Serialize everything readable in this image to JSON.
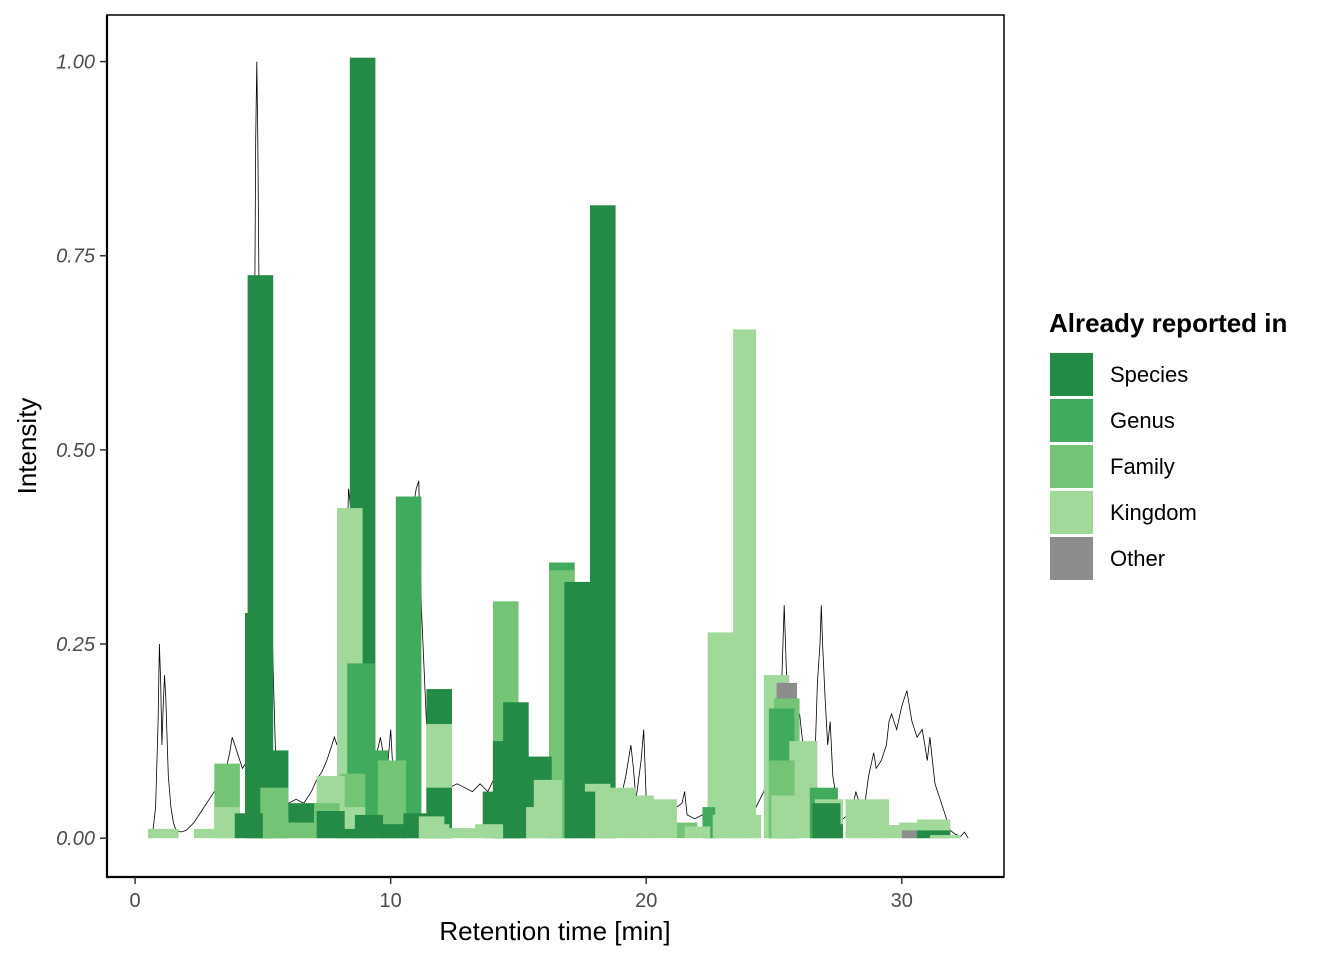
{
  "chart_data": {
    "type": "bar",
    "xlabel": "Retention time [min]",
    "ylabel": "Intensity",
    "xlim": [
      -1.1,
      34.0
    ],
    "ylim": [
      -0.05,
      1.06
    ],
    "x_ticks": [
      0,
      10,
      20,
      30
    ],
    "x_tick_labels": [
      "0",
      "10",
      "20",
      "30"
    ],
    "y_ticks": [
      0,
      0.25,
      0.5,
      0.75,
      1.0
    ],
    "y_tick_labels": [
      "0.00",
      "0.25",
      "0.50",
      "0.75",
      "1.00"
    ],
    "grid": false,
    "legend": {
      "title": "Already reported in",
      "placement": "right",
      "entries": [
        {
          "label": "Species",
          "color": "#238b45"
        },
        {
          "label": "Genus",
          "color": "#41ab5d"
        },
        {
          "label": "Family",
          "color": "#74c476"
        },
        {
          "label": "Kingdom",
          "color": "#a1d99b"
        },
        {
          "label": "Other",
          "color": "#8c8c8c"
        }
      ]
    },
    "trace": {
      "color": "#000000",
      "points": [
        [
          0.6,
          0.0
        ],
        [
          0.7,
          0.01
        ],
        [
          0.8,
          0.04
        ],
        [
          0.9,
          0.15
        ],
        [
          0.95,
          0.25
        ],
        [
          1.0,
          0.2
        ],
        [
          1.05,
          0.12
        ],
        [
          1.1,
          0.17
        ],
        [
          1.15,
          0.21
        ],
        [
          1.2,
          0.18
        ],
        [
          1.3,
          0.08
        ],
        [
          1.4,
          0.04
        ],
        [
          1.5,
          0.02
        ],
        [
          1.6,
          0.01
        ],
        [
          1.8,
          0.008
        ],
        [
          2.0,
          0.01
        ],
        [
          2.3,
          0.02
        ],
        [
          2.6,
          0.035
        ],
        [
          2.9,
          0.05
        ],
        [
          3.2,
          0.065
        ],
        [
          3.5,
          0.08
        ],
        [
          3.7,
          0.11
        ],
        [
          3.8,
          0.13
        ],
        [
          3.9,
          0.12
        ],
        [
          4.0,
          0.11
        ],
        [
          4.2,
          0.09
        ],
        [
          4.4,
          0.1
        ],
        [
          4.55,
          0.2
        ],
        [
          4.65,
          0.5
        ],
        [
          4.72,
          0.9
        ],
        [
          4.76,
          1.0
        ],
        [
          4.8,
          0.9
        ],
        [
          4.9,
          0.5
        ],
        [
          5.0,
          0.3
        ],
        [
          5.1,
          0.2
        ],
        [
          5.2,
          0.12
        ],
        [
          5.3,
          0.2
        ],
        [
          5.35,
          0.29
        ],
        [
          5.4,
          0.22
        ],
        [
          5.5,
          0.1
        ],
        [
          5.7,
          0.06
        ],
        [
          6.0,
          0.045
        ],
        [
          6.3,
          0.05
        ],
        [
          6.6,
          0.045
        ],
        [
          6.9,
          0.06
        ],
        [
          7.1,
          0.075
        ],
        [
          7.3,
          0.085
        ],
        [
          7.5,
          0.1
        ],
        [
          7.7,
          0.12
        ],
        [
          7.8,
          0.13
        ],
        [
          7.9,
          0.12
        ],
        [
          8.0,
          0.14
        ],
        [
          8.2,
          0.25
        ],
        [
          8.35,
          0.45
        ],
        [
          8.45,
          0.42
        ],
        [
          8.55,
          0.3
        ],
        [
          8.65,
          0.2
        ],
        [
          8.8,
          0.15
        ],
        [
          9.0,
          0.17
        ],
        [
          9.2,
          0.15
        ],
        [
          9.4,
          0.1
        ],
        [
          9.6,
          0.13
        ],
        [
          9.7,
          0.11
        ],
        [
          9.8,
          0.09
        ],
        [
          9.9,
          0.1
        ],
        [
          10.0,
          0.14
        ],
        [
          10.1,
          0.08
        ],
        [
          10.4,
          0.12
        ],
        [
          10.7,
          0.3
        ],
        [
          10.9,
          0.43
        ],
        [
          11.0,
          0.45
        ],
        [
          11.1,
          0.46
        ],
        [
          11.2,
          0.3
        ],
        [
          11.4,
          0.15
        ],
        [
          11.6,
          0.1
        ],
        [
          11.8,
          0.08
        ],
        [
          12.0,
          0.07
        ],
        [
          12.3,
          0.065
        ],
        [
          12.6,
          0.07
        ],
        [
          12.9,
          0.065
        ],
        [
          13.2,
          0.06
        ],
        [
          13.5,
          0.07
        ],
        [
          13.8,
          0.06
        ],
        [
          14.1,
          0.08
        ],
        [
          14.3,
          0.1
        ],
        [
          14.5,
          0.08
        ],
        [
          14.8,
          0.12
        ],
        [
          15.0,
          0.1
        ],
        [
          15.3,
          0.06
        ],
        [
          15.6,
          0.055
        ],
        [
          15.9,
          0.06
        ],
        [
          16.2,
          0.1
        ],
        [
          16.5,
          0.2
        ],
        [
          16.7,
          0.26
        ],
        [
          16.9,
          0.2
        ],
        [
          17.1,
          0.15
        ],
        [
          17.4,
          0.12
        ],
        [
          17.7,
          0.15
        ],
        [
          17.9,
          0.12
        ],
        [
          18.1,
          0.1
        ],
        [
          18.4,
          0.06
        ],
        [
          18.7,
          0.04
        ],
        [
          19.0,
          0.05
        ],
        [
          19.2,
          0.08
        ],
        [
          19.4,
          0.12
        ],
        [
          19.5,
          0.09
        ],
        [
          19.6,
          0.05
        ],
        [
          19.8,
          0.1
        ],
        [
          19.9,
          0.14
        ],
        [
          20.0,
          0.05
        ],
        [
          20.3,
          0.03
        ],
        [
          20.6,
          0.025
        ],
        [
          20.9,
          0.03
        ],
        [
          21.2,
          0.04
        ],
        [
          21.4,
          0.045
        ],
        [
          21.5,
          0.06
        ],
        [
          21.6,
          0.03
        ],
        [
          21.9,
          0.025
        ],
        [
          22.2,
          0.03
        ],
        [
          22.5,
          0.035
        ],
        [
          22.8,
          0.03
        ],
        [
          23.1,
          0.035
        ],
        [
          23.4,
          0.04
        ],
        [
          23.7,
          0.035
        ],
        [
          24.0,
          0.03
        ],
        [
          24.3,
          0.04
        ],
        [
          24.6,
          0.06
        ],
        [
          24.8,
          0.09
        ],
        [
          25.0,
          0.12
        ],
        [
          25.1,
          0.08
        ],
        [
          25.2,
          0.1
        ],
        [
          25.3,
          0.2
        ],
        [
          25.4,
          0.3
        ],
        [
          25.5,
          0.2
        ],
        [
          25.6,
          0.15
        ],
        [
          25.8,
          0.12
        ],
        [
          26.0,
          0.16
        ],
        [
          26.1,
          0.13
        ],
        [
          26.2,
          0.1
        ],
        [
          26.4,
          0.08
        ],
        [
          26.6,
          0.1
        ],
        [
          26.7,
          0.2
        ],
        [
          26.8,
          0.25
        ],
        [
          26.85,
          0.3
        ],
        [
          26.9,
          0.25
        ],
        [
          27.0,
          0.18
        ],
        [
          27.1,
          0.12
        ],
        [
          27.2,
          0.15
        ],
        [
          27.3,
          0.08
        ],
        [
          27.5,
          0.04
        ],
        [
          27.7,
          0.025
        ],
        [
          27.9,
          0.03
        ],
        [
          28.0,
          0.025
        ],
        [
          28.2,
          0.06
        ],
        [
          28.4,
          0.04
        ],
        [
          28.5,
          0.03
        ],
        [
          28.7,
          0.08
        ],
        [
          28.9,
          0.11
        ],
        [
          29.0,
          0.09
        ],
        [
          29.2,
          0.1
        ],
        [
          29.4,
          0.12
        ],
        [
          29.5,
          0.15
        ],
        [
          29.6,
          0.16
        ],
        [
          29.7,
          0.15
        ],
        [
          29.8,
          0.14
        ],
        [
          30.0,
          0.17
        ],
        [
          30.1,
          0.18
        ],
        [
          30.2,
          0.19
        ],
        [
          30.3,
          0.17
        ],
        [
          30.4,
          0.15
        ],
        [
          30.6,
          0.13
        ],
        [
          30.8,
          0.14
        ],
        [
          30.9,
          0.12
        ],
        [
          31.0,
          0.1
        ],
        [
          31.1,
          0.13
        ],
        [
          31.2,
          0.1
        ],
        [
          31.3,
          0.07
        ],
        [
          31.5,
          0.05
        ],
        [
          31.7,
          0.03
        ],
        [
          31.9,
          0.01
        ],
        [
          32.1,
          0.005
        ],
        [
          32.3,
          0.002
        ],
        [
          32.45,
          0.008
        ],
        [
          32.6,
          0.0
        ]
      ]
    },
    "bars": [
      {
        "x0": 0.5,
        "x1": 1.7,
        "y": 0.012,
        "cat": "Kingdom"
      },
      {
        "x0": 2.3,
        "x1": 3.2,
        "y": 0.012,
        "cat": "Kingdom"
      },
      {
        "x0": 3.1,
        "x1": 4.1,
        "y": 0.096,
        "cat": "Family"
      },
      {
        "x0": 3.1,
        "x1": 4.1,
        "y": 0.04,
        "cat": "Kingdom"
      },
      {
        "x0": 3.9,
        "x1": 5.0,
        "y": 0.032,
        "cat": "Species"
      },
      {
        "x0": 4.3,
        "x1": 5.3,
        "y": 0.29,
        "cat": "Species"
      },
      {
        "x0": 4.4,
        "x1": 5.4,
        "y": 0.725,
        "cat": "Species"
      },
      {
        "x0": 4.9,
        "x1": 6.0,
        "y": 0.113,
        "cat": "Species"
      },
      {
        "x0": 4.9,
        "x1": 6.0,
        "y": 0.065,
        "cat": "Family"
      },
      {
        "x0": 5.0,
        "x1": 6.0,
        "y": 0.03,
        "cat": "Family"
      },
      {
        "x0": 5.5,
        "x1": 6.5,
        "y": 0.02,
        "cat": "Family"
      },
      {
        "x0": 6.0,
        "x1": 7.1,
        "y": 0.045,
        "cat": "Species"
      },
      {
        "x0": 6.1,
        "x1": 7.1,
        "y": 0.02,
        "cat": "Family"
      },
      {
        "x0": 7.0,
        "x1": 8.0,
        "y": 0.045,
        "cat": "Family"
      },
      {
        "x0": 7.1,
        "x1": 8.2,
        "y": 0.08,
        "cat": "Kingdom"
      },
      {
        "x0": 7.1,
        "x1": 8.2,
        "y": 0.035,
        "cat": "Species"
      },
      {
        "x0": 7.8,
        "x1": 8.9,
        "y": 0.012,
        "cat": "Species"
      },
      {
        "x0": 7.9,
        "x1": 8.9,
        "y": 0.425,
        "cat": "Kingdom"
      },
      {
        "x0": 8.0,
        "x1": 9.0,
        "y": 0.083,
        "cat": "Family"
      },
      {
        "x0": 8.0,
        "x1": 9.0,
        "y": 0.04,
        "cat": "Kingdom"
      },
      {
        "x0": 8.4,
        "x1": 9.4,
        "y": 1.005,
        "cat": "Species"
      },
      {
        "x0": 8.3,
        "x1": 9.4,
        "y": 0.225,
        "cat": "Genus"
      },
      {
        "x0": 8.6,
        "x1": 9.7,
        "y": 0.03,
        "cat": "Species"
      },
      {
        "x0": 9.0,
        "x1": 9.9,
        "y": 0.113,
        "cat": "Genus"
      },
      {
        "x0": 9.5,
        "x1": 10.6,
        "y": 0.1,
        "cat": "Family"
      },
      {
        "x0": 9.5,
        "x1": 10.6,
        "y": 0.043,
        "cat": "Family"
      },
      {
        "x0": 9.6,
        "x1": 10.6,
        "y": 0.018,
        "cat": "Species"
      },
      {
        "x0": 10.2,
        "x1": 11.2,
        "y": 0.44,
        "cat": "Genus"
      },
      {
        "x0": 10.5,
        "x1": 11.5,
        "y": 0.032,
        "cat": "Species"
      },
      {
        "x0": 11.1,
        "x1": 12.1,
        "y": 0.028,
        "cat": "Kingdom"
      },
      {
        "x0": 11.4,
        "x1": 12.4,
        "y": 0.192,
        "cat": "Species"
      },
      {
        "x0": 11.4,
        "x1": 12.4,
        "y": 0.147,
        "cat": "Kingdom"
      },
      {
        "x0": 11.4,
        "x1": 12.4,
        "y": 0.065,
        "cat": "Species"
      },
      {
        "x0": 11.2,
        "x1": 12.3,
        "y": 0.018,
        "cat": "Kingdom"
      },
      {
        "x0": 12.2,
        "x1": 13.3,
        "y": 0.013,
        "cat": "Kingdom"
      },
      {
        "x0": 13.6,
        "x1": 14.4,
        "y": 0.06,
        "cat": "Species"
      },
      {
        "x0": 14.0,
        "x1": 15.0,
        "y": 0.305,
        "cat": "Family"
      },
      {
        "x0": 14.0,
        "x1": 15.1,
        "y": 0.125,
        "cat": "Species"
      },
      {
        "x0": 13.3,
        "x1": 14.4,
        "y": 0.018,
        "cat": "Kingdom"
      },
      {
        "x0": 14.4,
        "x1": 15.4,
        "y": 0.175,
        "cat": "Species"
      },
      {
        "x0": 14.2,
        "x1": 15.3,
        "y": 0.04,
        "cat": "Species"
      },
      {
        "x0": 15.3,
        "x1": 16.3,
        "y": 0.105,
        "cat": "Species"
      },
      {
        "x0": 15.3,
        "x1": 16.3,
        "y": 0.04,
        "cat": "Kingdom"
      },
      {
        "x0": 16.2,
        "x1": 17.2,
        "y": 0.355,
        "cat": "Genus"
      },
      {
        "x0": 16.2,
        "x1": 17.2,
        "y": 0.345,
        "cat": "Family"
      },
      {
        "x0": 15.6,
        "x1": 16.7,
        "y": 0.075,
        "cat": "Kingdom"
      },
      {
        "x0": 16.8,
        "x1": 18.0,
        "y": 0.33,
        "cat": "Species"
      },
      {
        "x0": 17.0,
        "x1": 18.0,
        "y": 0.06,
        "cat": "Species"
      },
      {
        "x0": 17.8,
        "x1": 18.8,
        "y": 0.815,
        "cat": "Species"
      },
      {
        "x0": 17.6,
        "x1": 18.6,
        "y": 0.07,
        "cat": "Kingdom"
      },
      {
        "x0": 18.6,
        "x1": 19.6,
        "y": 0.065,
        "cat": "Kingdom"
      },
      {
        "x0": 19.4,
        "x1": 20.3,
        "y": 0.055,
        "cat": "Kingdom"
      },
      {
        "x0": 20.2,
        "x1": 21.2,
        "y": 0.05,
        "cat": "Kingdom"
      },
      {
        "x0": 21.2,
        "x1": 22.0,
        "y": 0.02,
        "cat": "Family"
      },
      {
        "x0": 21.5,
        "x1": 22.5,
        "y": 0.015,
        "cat": "Kingdom"
      },
      {
        "x0": 22.2,
        "x1": 22.7,
        "y": 0.04,
        "cat": "Genus"
      },
      {
        "x0": 22.4,
        "x1": 23.5,
        "y": 0.265,
        "cat": "Kingdom"
      },
      {
        "x0": 22.6,
        "x1": 23.7,
        "y": 0.03,
        "cat": "Kingdom"
      },
      {
        "x0": 23.4,
        "x1": 24.3,
        "y": 0.655,
        "cat": "Kingdom"
      },
      {
        "x0": 23.4,
        "x1": 24.5,
        "y": 0.03,
        "cat": "Kingdom"
      },
      {
        "x0": 24.6,
        "x1": 25.6,
        "y": 0.21,
        "cat": "Kingdom"
      },
      {
        "x0": 25.1,
        "x1": 25.9,
        "y": 0.2,
        "cat": "Other"
      },
      {
        "x0": 25.0,
        "x1": 26.0,
        "y": 0.18,
        "cat": "Family"
      },
      {
        "x0": 24.8,
        "x1": 25.8,
        "y": 0.167,
        "cat": "Genus"
      },
      {
        "x0": 24.8,
        "x1": 25.8,
        "y": 0.1,
        "cat": "Family"
      },
      {
        "x0": 24.9,
        "x1": 25.9,
        "y": 0.055,
        "cat": "Kingdom"
      },
      {
        "x0": 25.6,
        "x1": 26.7,
        "y": 0.125,
        "cat": "Kingdom"
      },
      {
        "x0": 26.4,
        "x1": 27.5,
        "y": 0.065,
        "cat": "Genus"
      },
      {
        "x0": 26.6,
        "x1": 27.7,
        "y": 0.05,
        "cat": "Kingdom"
      },
      {
        "x0": 26.6,
        "x1": 27.7,
        "y": 0.018,
        "cat": "Species"
      },
      {
        "x0": 26.5,
        "x1": 27.6,
        "y": 0.045,
        "cat": "Species"
      },
      {
        "x0": 27.8,
        "x1": 29.5,
        "y": 0.05,
        "cat": "Kingdom"
      },
      {
        "x0": 27.9,
        "x1": 29.0,
        "y": 0.035,
        "cat": "Kingdom"
      },
      {
        "x0": 28.9,
        "x1": 30.0,
        "y": 0.017,
        "cat": "Kingdom"
      },
      {
        "x0": 29.9,
        "x1": 30.8,
        "y": 0.02,
        "cat": "Kingdom"
      },
      {
        "x0": 30.0,
        "x1": 30.8,
        "y": 0.01,
        "cat": "Other"
      },
      {
        "x0": 30.6,
        "x1": 31.9,
        "y": 0.024,
        "cat": "Kingdom"
      },
      {
        "x0": 30.6,
        "x1": 31.9,
        "y": 0.01,
        "cat": "Species"
      },
      {
        "x0": 31.1,
        "x1": 32.3,
        "y": 0.004,
        "cat": "Kingdom"
      }
    ]
  }
}
